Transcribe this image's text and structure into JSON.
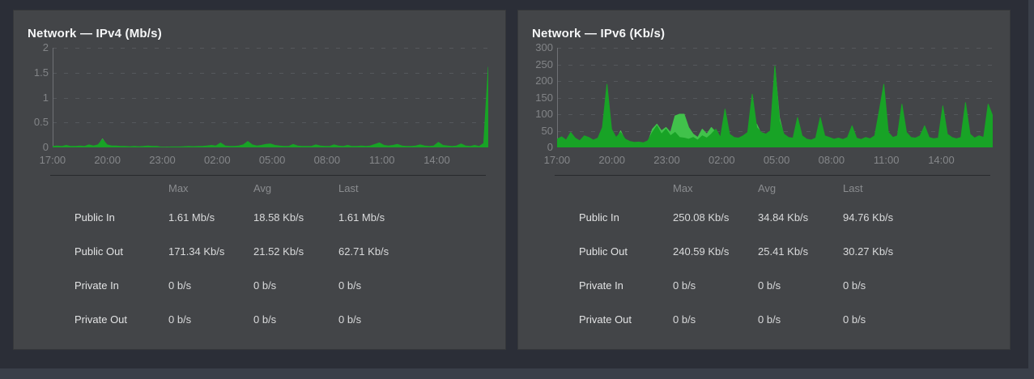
{
  "page": {
    "background": "#2b2e37",
    "panel_background": "#434548",
    "frame_color": "#3a3f49",
    "accent_green_dark": "#18a326",
    "accent_green_light": "#41c24b"
  },
  "chart_data": [
    {
      "type": "area",
      "title": "Network — IPv4 (Mb/s)",
      "unit": "Mb/s",
      "xlabel": "",
      "ylabel": "",
      "ylim": [
        0,
        2
      ],
      "ytick_labels": [
        "2",
        "1.5",
        "1",
        "0.5",
        "0"
      ],
      "x_tick_labels": [
        "17:00",
        "20:00",
        "23:00",
        "02:00",
        "05:00",
        "08:00",
        "11:00",
        "14:00"
      ],
      "grid": "dashed-horizontal",
      "legend_position": "bottom-table",
      "series": [
        {
          "name": "Public In",
          "color": "#18a326",
          "values": [
            0.02,
            0.03,
            0.02,
            0.04,
            0.02,
            0.02,
            0.03,
            0.02,
            0.05,
            0.03,
            0.05,
            0.16,
            0.05,
            0.03,
            0.03,
            0.02,
            0.02,
            0.015,
            0.02,
            0.015,
            0.02,
            0.03,
            0.02,
            0.02,
            0.005,
            0.005,
            0.01,
            0.01,
            0.01,
            0.015,
            0.02,
            0.015,
            0.02,
            0.02,
            0.03,
            0.04,
            0.03,
            0.09,
            0.03,
            0.02,
            0.02,
            0.03,
            0.05,
            0.12,
            0.05,
            0.03,
            0.04,
            0.06,
            0.07,
            0.04,
            0.03,
            0.02,
            0.02,
            0.06,
            0.03,
            0.02,
            0.02,
            0.02,
            0.05,
            0.03,
            0.02,
            0.02,
            0.05,
            0.03,
            0.02,
            0.04,
            0.02,
            0.02,
            0.03,
            0.02,
            0.03,
            0.06,
            0.09,
            0.04,
            0.03,
            0.04,
            0.06,
            0.03,
            0.02,
            0.02,
            0.03,
            0.05,
            0.03,
            0.02,
            0.03,
            0.1,
            0.04,
            0.03,
            0.02,
            0.03,
            0.07,
            0.03,
            0.02,
            0.04,
            0.02,
            0.08,
            1.61
          ]
        },
        {
          "name": "Public Out",
          "color": "#41c24b",
          "values": [
            0.01,
            0.015,
            0.01,
            0.02,
            0.01,
            0.01,
            0.015,
            0.01,
            0.02,
            0.015,
            0.03,
            0.17,
            0.03,
            0.02,
            0.02,
            0.01,
            0.01,
            0.008,
            0.01,
            0.008,
            0.01,
            0.015,
            0.01,
            0.01,
            0.004,
            0.004,
            0.008,
            0.008,
            0.008,
            0.01,
            0.015,
            0.01,
            0.015,
            0.01,
            0.02,
            0.02,
            0.02,
            0.05,
            0.02,
            0.015,
            0.015,
            0.02,
            0.03,
            0.06,
            0.03,
            0.02,
            0.02,
            0.03,
            0.04,
            0.02,
            0.015,
            0.01,
            0.01,
            0.03,
            0.02,
            0.01,
            0.01,
            0.015,
            0.03,
            0.02,
            0.015,
            0.01,
            0.03,
            0.02,
            0.01,
            0.02,
            0.015,
            0.01,
            0.02,
            0.015,
            0.02,
            0.04,
            0.05,
            0.02,
            0.015,
            0.02,
            0.03,
            0.02,
            0.01,
            0.015,
            0.02,
            0.03,
            0.02,
            0.015,
            0.02,
            0.05,
            0.02,
            0.015,
            0.01,
            0.02,
            0.04,
            0.02,
            0.01,
            0.02,
            0.015,
            0.05,
            0.063
          ]
        },
        {
          "name": "Private In",
          "color": "#cbaed3",
          "values": [
            0
          ]
        },
        {
          "name": "Private Out",
          "color": "#f8d780",
          "values": [
            0
          ]
        }
      ],
      "legend": {
        "columns": [
          "Max",
          "Avg",
          "Last"
        ],
        "rows": [
          {
            "label": "Public In",
            "max": "1.61 Mb/s",
            "avg": "18.58 Kb/s",
            "last": "1.61 Mb/s"
          },
          {
            "label": "Public Out",
            "max": "171.34 Kb/s",
            "avg": "21.52 Kb/s",
            "last": "62.71 Kb/s"
          },
          {
            "label": "Private In",
            "max": "0 b/s",
            "avg": "0 b/s",
            "last": "0 b/s"
          },
          {
            "label": "Private Out",
            "max": "0 b/s",
            "avg": "0 b/s",
            "last": "0 b/s"
          }
        ]
      }
    },
    {
      "type": "area",
      "title": "Network — IPv6 (Kb/s)",
      "unit": "Kb/s",
      "xlabel": "",
      "ylabel": "",
      "ylim": [
        0,
        300
      ],
      "ytick_labels": [
        "300",
        "250",
        "200",
        "150",
        "100",
        "50",
        "0"
      ],
      "x_tick_labels": [
        "17:00",
        "20:00",
        "23:00",
        "02:00",
        "05:00",
        "08:00",
        "11:00",
        "14:00"
      ],
      "grid": "dashed-horizontal",
      "legend_position": "bottom-table",
      "series": [
        {
          "name": "Public In",
          "color": "#18a326",
          "values": [
            25,
            32,
            22,
            45,
            28,
            20,
            35,
            30,
            22,
            28,
            60,
            190,
            55,
            30,
            45,
            25,
            18,
            15,
            16,
            14,
            20,
            45,
            65,
            40,
            55,
            35,
            45,
            30,
            28,
            25,
            30,
            22,
            35,
            28,
            40,
            55,
            30,
            115,
            40,
            30,
            28,
            35,
            45,
            160,
            60,
            45,
            40,
            50,
            245,
            80,
            40,
            30,
            28,
            90,
            35,
            25,
            22,
            28,
            90,
            35,
            30,
            25,
            28,
            24,
            30,
            65,
            28,
            24,
            30,
            26,
            35,
            110,
            190,
            45,
            30,
            35,
            130,
            45,
            30,
            28,
            35,
            65,
            30,
            26,
            28,
            125,
            40,
            30,
            26,
            30,
            135,
            40,
            28,
            35,
            30,
            130,
            95
          ]
        },
        {
          "name": "Public Out",
          "color": "#41c24b",
          "values": [
            15,
            18,
            12,
            20,
            15,
            12,
            18,
            14,
            12,
            16,
            25,
            80,
            30,
            20,
            50,
            20,
            12,
            10,
            12,
            10,
            15,
            55,
            70,
            50,
            60,
            45,
            95,
            100,
            100,
            60,
            40,
            30,
            55,
            40,
            60,
            45,
            25,
            60,
            30,
            20,
            18,
            25,
            35,
            60,
            70,
            40,
            30,
            35,
            240,
            90,
            35,
            22,
            20,
            40,
            25,
            18,
            15,
            20,
            35,
            22,
            18,
            15,
            20,
            16,
            22,
            35,
            20,
            16,
            20,
            18,
            25,
            50,
            70,
            30,
            20,
            25,
            55,
            30,
            20,
            18,
            25,
            40,
            22,
            18,
            20,
            55,
            28,
            20,
            18,
            22,
            60,
            28,
            20,
            25,
            22,
            60,
            30
          ]
        },
        {
          "name": "Private In",
          "color": "#cbaed3",
          "values": [
            0
          ]
        },
        {
          "name": "Private Out",
          "color": "#f8d780",
          "values": [
            0
          ]
        }
      ],
      "legend": {
        "columns": [
          "Max",
          "Avg",
          "Last"
        ],
        "rows": [
          {
            "label": "Public In",
            "max": "250.08 Kb/s",
            "avg": "34.84 Kb/s",
            "last": "94.76 Kb/s"
          },
          {
            "label": "Public Out",
            "max": "240.59 Kb/s",
            "avg": "25.41 Kb/s",
            "last": "30.27 Kb/s"
          },
          {
            "label": "Private In",
            "max": "0 b/s",
            "avg": "0 b/s",
            "last": "0 b/s"
          },
          {
            "label": "Private Out",
            "max": "0 b/s",
            "avg": "0 b/s",
            "last": "0 b/s"
          }
        ]
      }
    }
  ]
}
